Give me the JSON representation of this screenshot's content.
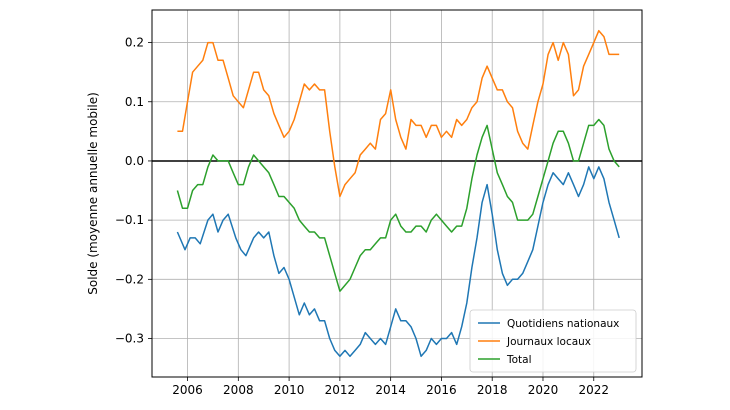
{
  "chart_data": {
    "type": "line",
    "title": "",
    "xlabel": "",
    "ylabel": "Solde (moyenne annuelle mobile)",
    "xlim": [
      2004.6,
      2023.9
    ],
    "ylim": [
      -0.365,
      0.255
    ],
    "x_ticks": [
      2006,
      2008,
      2010,
      2012,
      2014,
      2016,
      2018,
      2020,
      2022
    ],
    "x_tick_labels": [
      "2006",
      "2008",
      "2010",
      "2012",
      "2014",
      "2016",
      "2018",
      "2020",
      "2022"
    ],
    "y_ticks": [
      -0.3,
      -0.2,
      -0.1,
      0.0,
      0.1,
      0.2
    ],
    "y_tick_labels": [
      "−0.3",
      "−0.2",
      "−0.1",
      "0.0",
      "0.1",
      "0.2"
    ],
    "grid": true,
    "zero_line": true,
    "legend_position": "lower-right",
    "series": [
      {
        "name": "Quotidiens nationaux",
        "color": "#1f77b4",
        "points": [
          [
            2005.6,
            -0.12
          ],
          [
            2005.9,
            -0.15
          ],
          [
            2006.1,
            -0.13
          ],
          [
            2006.3,
            -0.13
          ],
          [
            2006.5,
            -0.14
          ],
          [
            2006.8,
            -0.1
          ],
          [
            2007.0,
            -0.09
          ],
          [
            2007.2,
            -0.12
          ],
          [
            2007.4,
            -0.1
          ],
          [
            2007.6,
            -0.09
          ],
          [
            2007.9,
            -0.13
          ],
          [
            2008.1,
            -0.15
          ],
          [
            2008.3,
            -0.16
          ],
          [
            2008.6,
            -0.13
          ],
          [
            2008.8,
            -0.12
          ],
          [
            2009.0,
            -0.13
          ],
          [
            2009.2,
            -0.12
          ],
          [
            2009.4,
            -0.16
          ],
          [
            2009.6,
            -0.19
          ],
          [
            2009.8,
            -0.18
          ],
          [
            2010.0,
            -0.2
          ],
          [
            2010.2,
            -0.23
          ],
          [
            2010.4,
            -0.26
          ],
          [
            2010.6,
            -0.24
          ],
          [
            2010.8,
            -0.26
          ],
          [
            2011.0,
            -0.25
          ],
          [
            2011.2,
            -0.27
          ],
          [
            2011.4,
            -0.27
          ],
          [
            2011.6,
            -0.3
          ],
          [
            2011.8,
            -0.32
          ],
          [
            2012.0,
            -0.33
          ],
          [
            2012.2,
            -0.32
          ],
          [
            2012.4,
            -0.33
          ],
          [
            2012.6,
            -0.32
          ],
          [
            2012.8,
            -0.31
          ],
          [
            2013.0,
            -0.29
          ],
          [
            2013.2,
            -0.3
          ],
          [
            2013.4,
            -0.31
          ],
          [
            2013.6,
            -0.3
          ],
          [
            2013.8,
            -0.31
          ],
          [
            2014.0,
            -0.28
          ],
          [
            2014.2,
            -0.25
          ],
          [
            2014.4,
            -0.27
          ],
          [
            2014.6,
            -0.27
          ],
          [
            2014.8,
            -0.28
          ],
          [
            2015.0,
            -0.3
          ],
          [
            2015.2,
            -0.33
          ],
          [
            2015.4,
            -0.32
          ],
          [
            2015.6,
            -0.3
          ],
          [
            2015.8,
            -0.31
          ],
          [
            2016.0,
            -0.3
          ],
          [
            2016.2,
            -0.3
          ],
          [
            2016.4,
            -0.29
          ],
          [
            2016.6,
            -0.31
          ],
          [
            2016.8,
            -0.28
          ],
          [
            2017.0,
            -0.24
          ],
          [
            2017.2,
            -0.18
          ],
          [
            2017.4,
            -0.13
          ],
          [
            2017.6,
            -0.07
          ],
          [
            2017.8,
            -0.04
          ],
          [
            2018.0,
            -0.09
          ],
          [
            2018.2,
            -0.15
          ],
          [
            2018.4,
            -0.19
          ],
          [
            2018.6,
            -0.21
          ],
          [
            2018.8,
            -0.2
          ],
          [
            2019.0,
            -0.2
          ],
          [
            2019.2,
            -0.19
          ],
          [
            2019.4,
            -0.17
          ],
          [
            2019.6,
            -0.15
          ],
          [
            2019.8,
            -0.11
          ],
          [
            2020.0,
            -0.07
          ],
          [
            2020.2,
            -0.04
          ],
          [
            2020.4,
            -0.02
          ],
          [
            2020.6,
            -0.03
          ],
          [
            2020.8,
            -0.04
          ],
          [
            2021.0,
            -0.02
          ],
          [
            2021.2,
            -0.04
          ],
          [
            2021.4,
            -0.06
          ],
          [
            2021.6,
            -0.04
          ],
          [
            2021.8,
            -0.01
          ],
          [
            2022.0,
            -0.03
          ],
          [
            2022.2,
            -0.01
          ],
          [
            2022.4,
            -0.03
          ],
          [
            2022.6,
            -0.07
          ],
          [
            2022.8,
            -0.1
          ],
          [
            2023.0,
            -0.13
          ]
        ]
      },
      {
        "name": "Journaux locaux",
        "color": "#ff7f0e",
        "points": [
          [
            2005.6,
            0.05
          ],
          [
            2005.8,
            0.05
          ],
          [
            2006.0,
            0.1
          ],
          [
            2006.2,
            0.15
          ],
          [
            2006.4,
            0.16
          ],
          [
            2006.6,
            0.17
          ],
          [
            2006.8,
            0.2
          ],
          [
            2007.0,
            0.2
          ],
          [
            2007.2,
            0.17
          ],
          [
            2007.4,
            0.17
          ],
          [
            2007.6,
            0.14
          ],
          [
            2007.8,
            0.11
          ],
          [
            2008.0,
            0.1
          ],
          [
            2008.2,
            0.09
          ],
          [
            2008.4,
            0.12
          ],
          [
            2008.6,
            0.15
          ],
          [
            2008.8,
            0.15
          ],
          [
            2009.0,
            0.12
          ],
          [
            2009.2,
            0.11
          ],
          [
            2009.4,
            0.08
          ],
          [
            2009.6,
            0.06
          ],
          [
            2009.8,
            0.04
          ],
          [
            2010.0,
            0.05
          ],
          [
            2010.2,
            0.07
          ],
          [
            2010.4,
            0.1
          ],
          [
            2010.6,
            0.13
          ],
          [
            2010.8,
            0.12
          ],
          [
            2011.0,
            0.13
          ],
          [
            2011.2,
            0.12
          ],
          [
            2011.4,
            0.12
          ],
          [
            2011.6,
            0.05
          ],
          [
            2011.8,
            -0.01
          ],
          [
            2012.0,
            -0.06
          ],
          [
            2012.2,
            -0.04
          ],
          [
            2012.4,
            -0.03
          ],
          [
            2012.6,
            -0.02
          ],
          [
            2012.8,
            0.01
          ],
          [
            2013.0,
            0.02
          ],
          [
            2013.2,
            0.03
          ],
          [
            2013.4,
            0.02
          ],
          [
            2013.6,
            0.07
          ],
          [
            2013.8,
            0.08
          ],
          [
            2014.0,
            0.12
          ],
          [
            2014.2,
            0.07
          ],
          [
            2014.4,
            0.04
          ],
          [
            2014.6,
            0.02
          ],
          [
            2014.8,
            0.07
          ],
          [
            2015.0,
            0.06
          ],
          [
            2015.2,
            0.06
          ],
          [
            2015.4,
            0.04
          ],
          [
            2015.6,
            0.06
          ],
          [
            2015.8,
            0.06
          ],
          [
            2016.0,
            0.04
          ],
          [
            2016.2,
            0.05
          ],
          [
            2016.4,
            0.04
          ],
          [
            2016.6,
            0.07
          ],
          [
            2016.8,
            0.06
          ],
          [
            2017.0,
            0.07
          ],
          [
            2017.2,
            0.09
          ],
          [
            2017.4,
            0.1
          ],
          [
            2017.6,
            0.14
          ],
          [
            2017.8,
            0.16
          ],
          [
            2018.0,
            0.14
          ],
          [
            2018.2,
            0.12
          ],
          [
            2018.4,
            0.12
          ],
          [
            2018.6,
            0.1
          ],
          [
            2018.8,
            0.09
          ],
          [
            2019.0,
            0.05
          ],
          [
            2019.2,
            0.03
          ],
          [
            2019.4,
            0.02
          ],
          [
            2019.6,
            0.06
          ],
          [
            2019.8,
            0.1
          ],
          [
            2020.0,
            0.13
          ],
          [
            2020.2,
            0.18
          ],
          [
            2020.4,
            0.2
          ],
          [
            2020.6,
            0.17
          ],
          [
            2020.8,
            0.2
          ],
          [
            2021.0,
            0.18
          ],
          [
            2021.2,
            0.11
          ],
          [
            2021.4,
            0.12
          ],
          [
            2021.6,
            0.16
          ],
          [
            2021.8,
            0.18
          ],
          [
            2022.0,
            0.2
          ],
          [
            2022.2,
            0.22
          ],
          [
            2022.4,
            0.21
          ],
          [
            2022.6,
            0.18
          ],
          [
            2022.8,
            0.18
          ],
          [
            2023.0,
            0.18
          ]
        ]
      },
      {
        "name": "Total",
        "color": "#2ca02c",
        "points": [
          [
            2005.6,
            -0.05
          ],
          [
            2005.8,
            -0.08
          ],
          [
            2006.0,
            -0.08
          ],
          [
            2006.2,
            -0.05
          ],
          [
            2006.4,
            -0.04
          ],
          [
            2006.6,
            -0.04
          ],
          [
            2006.8,
            -0.01
          ],
          [
            2007.0,
            0.01
          ],
          [
            2007.2,
            0.0
          ],
          [
            2007.4,
            0.0
          ],
          [
            2007.6,
            0.0
          ],
          [
            2007.8,
            -0.02
          ],
          [
            2008.0,
            -0.04
          ],
          [
            2008.2,
            -0.04
          ],
          [
            2008.4,
            -0.01
          ],
          [
            2008.6,
            0.01
          ],
          [
            2008.8,
            0.0
          ],
          [
            2009.0,
            -0.01
          ],
          [
            2009.2,
            -0.02
          ],
          [
            2009.4,
            -0.04
          ],
          [
            2009.6,
            -0.06
          ],
          [
            2009.8,
            -0.06
          ],
          [
            2010.0,
            -0.07
          ],
          [
            2010.2,
            -0.08
          ],
          [
            2010.4,
            -0.1
          ],
          [
            2010.6,
            -0.11
          ],
          [
            2010.8,
            -0.12
          ],
          [
            2011.0,
            -0.12
          ],
          [
            2011.2,
            -0.13
          ],
          [
            2011.4,
            -0.13
          ],
          [
            2011.6,
            -0.16
          ],
          [
            2011.8,
            -0.19
          ],
          [
            2012.0,
            -0.22
          ],
          [
            2012.2,
            -0.21
          ],
          [
            2012.4,
            -0.2
          ],
          [
            2012.6,
            -0.18
          ],
          [
            2012.8,
            -0.16
          ],
          [
            2013.0,
            -0.15
          ],
          [
            2013.2,
            -0.15
          ],
          [
            2013.4,
            -0.14
          ],
          [
            2013.6,
            -0.13
          ],
          [
            2013.8,
            -0.13
          ],
          [
            2014.0,
            -0.1
          ],
          [
            2014.2,
            -0.09
          ],
          [
            2014.4,
            -0.11
          ],
          [
            2014.6,
            -0.12
          ],
          [
            2014.8,
            -0.12
          ],
          [
            2015.0,
            -0.11
          ],
          [
            2015.2,
            -0.11
          ],
          [
            2015.4,
            -0.12
          ],
          [
            2015.6,
            -0.1
          ],
          [
            2015.8,
            -0.09
          ],
          [
            2016.0,
            -0.1
          ],
          [
            2016.2,
            -0.11
          ],
          [
            2016.4,
            -0.12
          ],
          [
            2016.6,
            -0.11
          ],
          [
            2016.8,
            -0.11
          ],
          [
            2017.0,
            -0.08
          ],
          [
            2017.2,
            -0.03
          ],
          [
            2017.4,
            0.01
          ],
          [
            2017.6,
            0.04
          ],
          [
            2017.8,
            0.06
          ],
          [
            2018.0,
            0.02
          ],
          [
            2018.2,
            -0.02
          ],
          [
            2018.4,
            -0.04
          ],
          [
            2018.6,
            -0.06
          ],
          [
            2018.8,
            -0.07
          ],
          [
            2019.0,
            -0.1
          ],
          [
            2019.2,
            -0.1
          ],
          [
            2019.4,
            -0.1
          ],
          [
            2019.6,
            -0.09
          ],
          [
            2019.8,
            -0.06
          ],
          [
            2020.0,
            -0.03
          ],
          [
            2020.2,
            0.0
          ],
          [
            2020.4,
            0.03
          ],
          [
            2020.6,
            0.05
          ],
          [
            2020.8,
            0.05
          ],
          [
            2021.0,
            0.03
          ],
          [
            2021.2,
            0.0
          ],
          [
            2021.4,
            0.0
          ],
          [
            2021.6,
            0.03
          ],
          [
            2021.8,
            0.06
          ],
          [
            2022.0,
            0.06
          ],
          [
            2022.2,
            0.07
          ],
          [
            2022.4,
            0.06
          ],
          [
            2022.6,
            0.02
          ],
          [
            2022.8,
            0.0
          ],
          [
            2023.0,
            -0.01
          ]
        ]
      }
    ]
  }
}
